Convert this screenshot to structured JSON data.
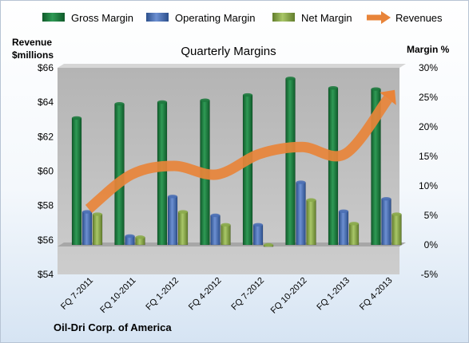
{
  "chart_data": {
    "type": "bar",
    "title": "Quarterly Margins",
    "footer": "Oil-Dri Corp. of America",
    "left_axis_label": [
      "Revenue",
      "$millions"
    ],
    "right_axis_label": "Margin %",
    "left_ticks": [
      "$54",
      "$56",
      "$58",
      "$60",
      "$62",
      "$64",
      "$66"
    ],
    "right_ticks": [
      "-5%",
      "0%",
      "5%",
      "10%",
      "15%",
      "20%",
      "25%",
      "30%"
    ],
    "left_ylim": [
      54,
      66
    ],
    "right_ylim": [
      -5,
      30
    ],
    "grid": false,
    "legend_position": "top",
    "categories": [
      "FQ 7-2011",
      "FQ 10-2011",
      "FQ 1-2012",
      "FQ 4-2012",
      "FQ 7-2012",
      "FQ 10-2012",
      "FQ 1-2013",
      "FQ 4-2013"
    ],
    "series": [
      {
        "name": "Gross Margin",
        "axis": "right",
        "kind": "bar",
        "color": "#1e7a3e",
        "values": [
          21.5,
          23.9,
          24.2,
          24.5,
          25.4,
          28.2,
          26.6,
          26.4
        ]
      },
      {
        "name": "Operating Margin",
        "axis": "right",
        "kind": "bar",
        "color": "#4a6fb5",
        "values": [
          5.6,
          1.5,
          8.2,
          5.0,
          3.4,
          10.6,
          5.7,
          7.8
        ]
      },
      {
        "name": "Net Margin",
        "axis": "right",
        "kind": "bar",
        "color": "#8bab4a",
        "values": [
          5.2,
          1.3,
          5.6,
          3.4,
          -0.3,
          7.6,
          3.6,
          5.2
        ]
      },
      {
        "name": "Revenues",
        "axis": "left",
        "kind": "line",
        "color": "#e8843a",
        "values": [
          57.8,
          59.8,
          60.3,
          59.8,
          61.0,
          61.4,
          61.0,
          64.2
        ]
      }
    ]
  }
}
